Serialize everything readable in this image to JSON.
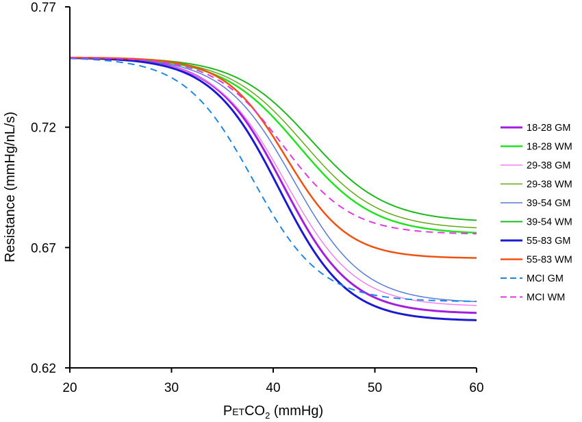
{
  "chart_data": {
    "type": "line",
    "title": "",
    "xlabel": {
      "main": "P",
      "sub": "ET",
      "mid": "CO",
      "sub2": "2",
      "tail": " (mmHg)"
    },
    "ylabel": "Resistance (mmHg/nL/s)",
    "xlim": [
      20,
      60
    ],
    "ylim": [
      0.62,
      0.77
    ],
    "xticks": [
      20,
      30,
      40,
      50,
      60
    ],
    "xtick_labels": [
      "20",
      "30",
      "40",
      "50",
      "60"
    ],
    "yticks": [
      0.62,
      0.67,
      0.72,
      0.77
    ],
    "ytick_labels": [
      "0.62",
      "0.67",
      "0.72",
      "0.77"
    ],
    "grid": false,
    "legend_position": "right",
    "series": [
      {
        "name": "18-28 GM",
        "color": "#a21fe0",
        "width": 3,
        "dash": "",
        "start": 0.749,
        "end": 0.6425,
        "mid": 41.0,
        "k": 0.3
      },
      {
        "name": "18-28 WM",
        "color": "#1fe31f",
        "width": 2.5,
        "dash": "",
        "start": 0.749,
        "end": 0.6755,
        "mid": 42.5,
        "k": 0.27
      },
      {
        "name": "29-38 GM",
        "color": "#f27ef2",
        "width": 1.5,
        "dash": "",
        "start": 0.749,
        "end": 0.6455,
        "mid": 41.2,
        "k": 0.29
      },
      {
        "name": "29-38 WM",
        "color": "#62a814",
        "width": 1.5,
        "dash": "",
        "start": 0.749,
        "end": 0.6775,
        "mid": 43.0,
        "k": 0.27
      },
      {
        "name": "39-54 GM",
        "color": "#5878d8",
        "width": 1.5,
        "dash": "",
        "start": 0.749,
        "end": 0.647,
        "mid": 42.0,
        "k": 0.29
      },
      {
        "name": "39-54 WM",
        "color": "#1cb81c",
        "width": 2,
        "dash": "",
        "start": 0.749,
        "end": 0.6805,
        "mid": 43.7,
        "k": 0.27
      },
      {
        "name": "55-83 GM",
        "color": "#1a1ad0",
        "width": 3,
        "dash": "",
        "start": 0.749,
        "end": 0.6395,
        "mid": 40.6,
        "k": 0.3
      },
      {
        "name": "55-83 WM",
        "color": "#f05010",
        "width": 2.5,
        "dash": "",
        "start": 0.749,
        "end": 0.6655,
        "mid": 41.3,
        "k": 0.33
      },
      {
        "name": "MCI GM",
        "color": "#1c86e8",
        "width": 2,
        "dash": "10,7",
        "start": 0.749,
        "end": 0.6475,
        "mid": 38.0,
        "k": 0.3
      },
      {
        "name": "MCI WM",
        "color": "#e236e2",
        "width": 2,
        "dash": "10,7",
        "start": 0.749,
        "end": 0.6755,
        "mid": 41.0,
        "k": 0.3
      }
    ]
  }
}
